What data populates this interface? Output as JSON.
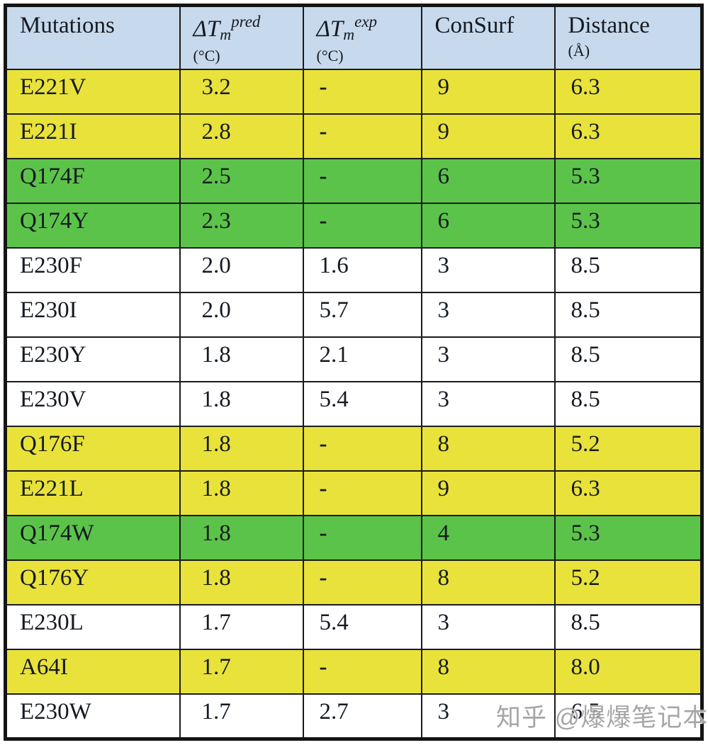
{
  "colors": {
    "header_bg": "#c7d9ec",
    "yellow": "#e9e23b",
    "green": "#5cc34a",
    "white": "#ffffff",
    "border": "#141414",
    "watermark_gray": "#a6a6a6"
  },
  "watermark": {
    "text": "知乎 @爆爆笔记本"
  },
  "table": {
    "fields": [
      "mutation",
      "dtm_pred",
      "dtm_exp",
      "consurf",
      "distance"
    ],
    "columns": [
      {
        "title": "Mutations"
      },
      {
        "symbol": "ΔT",
        "subscript": "m",
        "superscript": "pred",
        "unit": "(°C)"
      },
      {
        "symbol": "ΔT",
        "subscript": "m",
        "superscript": "exp",
        "unit": "(°C)"
      },
      {
        "title": "ConSurf"
      },
      {
        "title": "Distance",
        "unit": "(Å)"
      }
    ],
    "rows": [
      {
        "mutation": "E221V",
        "dtm_pred": "3.2",
        "dtm_exp": "-",
        "consurf": "9",
        "distance": "6.3",
        "highlight": "yellow"
      },
      {
        "mutation": "E221I",
        "dtm_pred": "2.8",
        "dtm_exp": "-",
        "consurf": "9",
        "distance": "6.3",
        "highlight": "yellow"
      },
      {
        "mutation": "Q174F",
        "dtm_pred": "2.5",
        "dtm_exp": "-",
        "consurf": "6",
        "distance": "5.3",
        "highlight": "green"
      },
      {
        "mutation": "Q174Y",
        "dtm_pred": "2.3",
        "dtm_exp": "-",
        "consurf": "6",
        "distance": "5.3",
        "highlight": "green"
      },
      {
        "mutation": "E230F",
        "dtm_pred": "2.0",
        "dtm_exp": "1.6",
        "consurf": "3",
        "distance": "8.5",
        "highlight": "white"
      },
      {
        "mutation": "E230I",
        "dtm_pred": "2.0",
        "dtm_exp": "5.7",
        "consurf": "3",
        "distance": "8.5",
        "highlight": "white"
      },
      {
        "mutation": "E230Y",
        "dtm_pred": "1.8",
        "dtm_exp": "2.1",
        "consurf": "3",
        "distance": "8.5",
        "highlight": "white"
      },
      {
        "mutation": "E230V",
        "dtm_pred": "1.8",
        "dtm_exp": "5.4",
        "consurf": "3",
        "distance": "8.5",
        "highlight": "white"
      },
      {
        "mutation": "Q176F",
        "dtm_pred": "1.8",
        "dtm_exp": "-",
        "consurf": "8",
        "distance": "5.2",
        "highlight": "yellow"
      },
      {
        "mutation": "E221L",
        "dtm_pred": "1.8",
        "dtm_exp": "-",
        "consurf": "9",
        "distance": "6.3",
        "highlight": "yellow"
      },
      {
        "mutation": "Q174W",
        "dtm_pred": "1.8",
        "dtm_exp": "-",
        "consurf": "4",
        "distance": "5.3",
        "highlight": "green"
      },
      {
        "mutation": "Q176Y",
        "dtm_pred": "1.8",
        "dtm_exp": "-",
        "consurf": "8",
        "distance": "5.2",
        "highlight": "yellow"
      },
      {
        "mutation": "E230L",
        "dtm_pred": "1.7",
        "dtm_exp": "5.4",
        "consurf": "3",
        "distance": "8.5",
        "highlight": "white"
      },
      {
        "mutation": "A64I",
        "dtm_pred": "1.7",
        "dtm_exp": "-",
        "consurf": "8",
        "distance": "8.0",
        "highlight": "yellow"
      },
      {
        "mutation": "E230W",
        "dtm_pred": "1.7",
        "dtm_exp": "2.7",
        "consurf": "3",
        "distance": "6.5",
        "highlight": "white"
      }
    ]
  },
  "chart_data": {
    "type": "table",
    "title": "",
    "columns": [
      "Mutations",
      "ΔTm pred (°C)",
      "ΔTm exp (°C)",
      "ConSurf",
      "Distance (Å)"
    ],
    "rows": [
      [
        "E221V",
        "3.2",
        "-",
        "9",
        "6.3"
      ],
      [
        "E221I",
        "2.8",
        "-",
        "9",
        "6.3"
      ],
      [
        "Q174F",
        "2.5",
        "-",
        "6",
        "5.3"
      ],
      [
        "Q174Y",
        "2.3",
        "-",
        "6",
        "5.3"
      ],
      [
        "E230F",
        "2.0",
        "1.6",
        "3",
        "8.5"
      ],
      [
        "E230I",
        "2.0",
        "5.7",
        "3",
        "8.5"
      ],
      [
        "E230Y",
        "1.8",
        "2.1",
        "3",
        "8.5"
      ],
      [
        "E230V",
        "1.8",
        "5.4",
        "3",
        "8.5"
      ],
      [
        "Q176F",
        "1.8",
        "-",
        "8",
        "5.2"
      ],
      [
        "E221L",
        "1.8",
        "-",
        "9",
        "6.3"
      ],
      [
        "Q174W",
        "1.8",
        "-",
        "4",
        "5.3"
      ],
      [
        "Q176Y",
        "1.8",
        "-",
        "8",
        "5.2"
      ],
      [
        "E230L",
        "1.7",
        "5.4",
        "3",
        "8.5"
      ],
      [
        "A64I",
        "1.7",
        "-",
        "8",
        "8.0"
      ],
      [
        "E230W",
        "1.7",
        "2.7",
        "3",
        "6.5"
      ]
    ],
    "row_highlights": [
      "yellow",
      "yellow",
      "green",
      "green",
      "white",
      "white",
      "white",
      "white",
      "yellow",
      "yellow",
      "green",
      "yellow",
      "white",
      "yellow",
      "white"
    ]
  }
}
